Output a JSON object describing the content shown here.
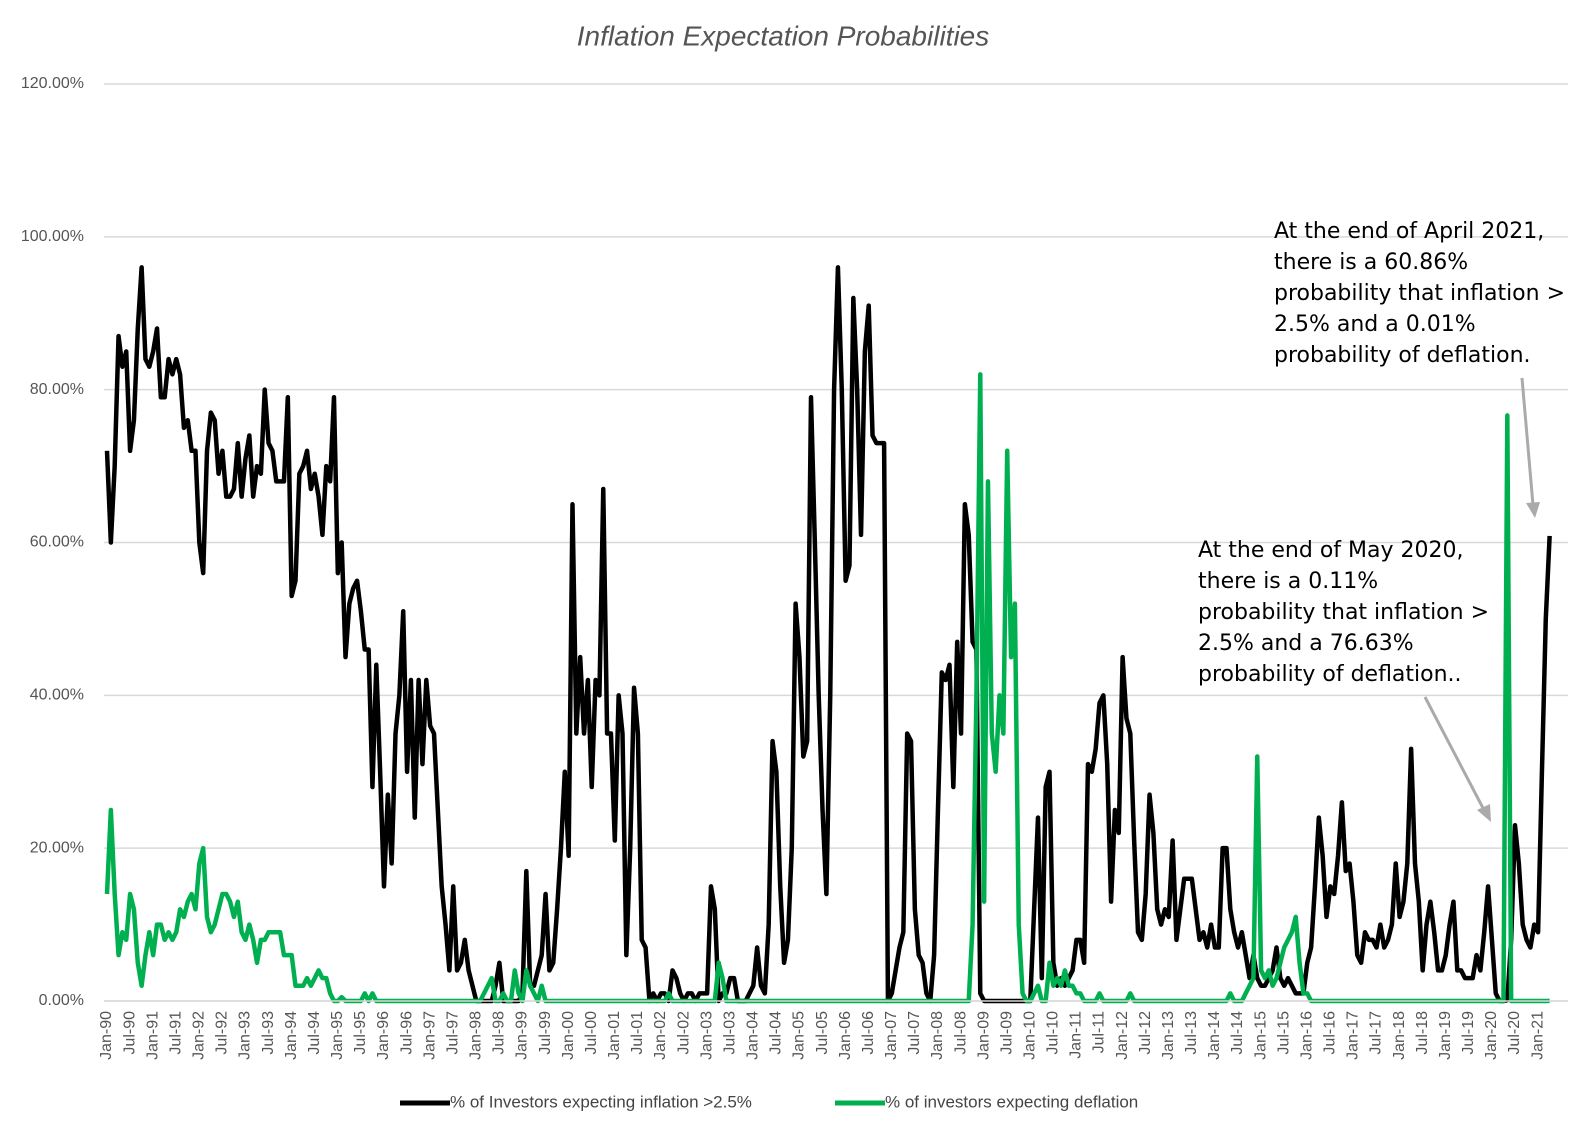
{
  "chart_data": {
    "type": "line",
    "title": "Inflation Expectation Probabilities",
    "categories": [
      "Jan-90",
      null,
      null,
      null,
      null,
      null,
      "Jul-90",
      null,
      null,
      null,
      null,
      null,
      "Jan-91",
      null,
      null,
      null,
      null,
      null,
      "Jul-91",
      null,
      null,
      null,
      null,
      null,
      "Jan-92",
      null,
      null,
      null,
      null,
      null,
      "Jul-92",
      null,
      null,
      null,
      null,
      null,
      "Jan-93",
      null,
      null,
      null,
      null,
      null,
      "Jul-93",
      null,
      null,
      null,
      null,
      null,
      "Jan-94",
      null,
      null,
      null,
      null,
      null,
      "Jul-94",
      null,
      null,
      null,
      null,
      null,
      "Jan-95",
      null,
      null,
      null,
      null,
      null,
      "Jul-95",
      null,
      null,
      null,
      null,
      null,
      "Jan-96",
      null,
      null,
      null,
      null,
      null,
      "Jul-96",
      null,
      null,
      null,
      null,
      null,
      "Jan-97",
      null,
      null,
      null,
      null,
      null,
      "Jul-97",
      null,
      null,
      null,
      null,
      null,
      "Jan-98",
      null,
      null,
      null,
      null,
      null,
      "Jul-98",
      null,
      null,
      null,
      null,
      null,
      "Jan-99",
      null,
      null,
      null,
      null,
      null,
      "Jul-99",
      null,
      null,
      null,
      null,
      null,
      "Jan-00",
      null,
      null,
      null,
      null,
      null,
      "Jul-00",
      null,
      null,
      null,
      null,
      null,
      "Jan-01",
      null,
      null,
      null,
      null,
      null,
      "Jul-01",
      null,
      null,
      null,
      null,
      null,
      "Jan-02",
      null,
      null,
      null,
      null,
      null,
      "Jul-02",
      null,
      null,
      null,
      null,
      null,
      "Jan-03",
      null,
      null,
      null,
      null,
      null,
      "Jul-03",
      null,
      null,
      null,
      null,
      null,
      "Jan-04",
      null,
      null,
      null,
      null,
      null,
      "Jul-04",
      null,
      null,
      null,
      null,
      null,
      "Jan-05",
      null,
      null,
      null,
      null,
      null,
      "Jul-05",
      null,
      null,
      null,
      null,
      null,
      "Jan-06",
      null,
      null,
      null,
      null,
      null,
      "Jul-06",
      null,
      null,
      null,
      null,
      null,
      "Jan-07",
      null,
      null,
      null,
      null,
      null,
      "Jul-07",
      null,
      null,
      null,
      null,
      null,
      "Jan-08",
      null,
      null,
      null,
      null,
      null,
      "Jul-08",
      null,
      null,
      null,
      null,
      null,
      "Jan-09",
      null,
      null,
      null,
      null,
      null,
      "Jul-09",
      null,
      null,
      null,
      null,
      null,
      "Jan-10",
      null,
      null,
      null,
      null,
      null,
      "Jul-10",
      null,
      null,
      null,
      null,
      null,
      "Jan-11",
      null,
      null,
      null,
      null,
      null,
      "Jul-11",
      null,
      null,
      null,
      null,
      null,
      "Jan-12",
      null,
      null,
      null,
      null,
      null,
      "Jul-12",
      null,
      null,
      null,
      null,
      null,
      "Jan-13",
      null,
      null,
      null,
      null,
      null,
      "Jul-13",
      null,
      null,
      null,
      null,
      null,
      "Jan-14",
      null,
      null,
      null,
      null,
      null,
      "Jul-14",
      null,
      null,
      null,
      null,
      null,
      "Jan-15",
      null,
      null,
      null,
      null,
      null,
      "Jul-15",
      null,
      null,
      null,
      null,
      null,
      "Jan-16",
      null,
      null,
      null,
      null,
      null,
      "Jul-16",
      null,
      null,
      null,
      null,
      null,
      "Jan-17",
      null,
      null,
      null,
      null,
      null,
      "Jul-17",
      null,
      null,
      null,
      null,
      null,
      "Jan-18",
      null,
      null,
      null,
      null,
      null,
      "Jul-18",
      null,
      null,
      null,
      null,
      null,
      "Jan-19",
      null,
      null,
      null,
      null,
      null,
      "Jul-19",
      null,
      null,
      null,
      null,
      null,
      "Jan-20",
      null,
      null,
      null,
      null,
      null,
      "Jul-20",
      null,
      null,
      null,
      null,
      null,
      "Jan-21",
      null,
      null,
      null
    ],
    "series": [
      {
        "name": "% of Investors expecting inflation >2.5%",
        "color": "#000000",
        "values": [
          72,
          60,
          70,
          87,
          83,
          85,
          72,
          76,
          88,
          96,
          84,
          83,
          85,
          88,
          79,
          79,
          84,
          82,
          84,
          82,
          75,
          76,
          72,
          72,
          60,
          56,
          72,
          77,
          76,
          69,
          72,
          66,
          66,
          67,
          73,
          66,
          71,
          74,
          66,
          70,
          69,
          80,
          73,
          72,
          68,
          68,
          68,
          79,
          53,
          55,
          69,
          70,
          72,
          67,
          69,
          66,
          61,
          70,
          68,
          79,
          56,
          60,
          45,
          52,
          54,
          55,
          51,
          46,
          46,
          28,
          44,
          30,
          15,
          27,
          18,
          35,
          40,
          51,
          30,
          42,
          24,
          42,
          31,
          42,
          36,
          35,
          25,
          15,
          10,
          4,
          15,
          4,
          5,
          8,
          4,
          2,
          0,
          0,
          0,
          0,
          0,
          2,
          5,
          0,
          0,
          0,
          0,
          0,
          1,
          17,
          2,
          2,
          4,
          6,
          14,
          4,
          5,
          12,
          20,
          30,
          19,
          65,
          35,
          45,
          35,
          42,
          28,
          42,
          40,
          67,
          35,
          35,
          21,
          40,
          35,
          6,
          20,
          41,
          35,
          8,
          7,
          0,
          1,
          0,
          1,
          1,
          0,
          4,
          3,
          1,
          0,
          1,
          1,
          0,
          1,
          1,
          1,
          15,
          12,
          0,
          1,
          1,
          3,
          3,
          0,
          0,
          0,
          1,
          2,
          7,
          2,
          1,
          10,
          34,
          30,
          15,
          5,
          8,
          20,
          52,
          45,
          32,
          34,
          79,
          60,
          40,
          25,
          14,
          40,
          80,
          96,
          80,
          55,
          57,
          92,
          80,
          61,
          85,
          91,
          74,
          73,
          73,
          73,
          0,
          1,
          4,
          7,
          9,
          35,
          34,
          12,
          6,
          5,
          1,
          0,
          6,
          25,
          43,
          42,
          44,
          28,
          47,
          35,
          65,
          61,
          47,
          46,
          1,
          0,
          0,
          0,
          0,
          0,
          0,
          0,
          0,
          0,
          0,
          0,
          0,
          0,
          12,
          24,
          3,
          28,
          30,
          5,
          2,
          3,
          2,
          3,
          4,
          8,
          8,
          5,
          31,
          30,
          33,
          39,
          40,
          31,
          13,
          25,
          22,
          45,
          37,
          35,
          21,
          9,
          8,
          14,
          27,
          22,
          12,
          10,
          12,
          11,
          21,
          8,
          12,
          16,
          16,
          16,
          12,
          8,
          9,
          7,
          10,
          7,
          7,
          20,
          20,
          12,
          9,
          7,
          9,
          6,
          3,
          6,
          3,
          2,
          2,
          3,
          4,
          7,
          3,
          2,
          3,
          2,
          1,
          1,
          1,
          5,
          7,
          15,
          24,
          19,
          11,
          15,
          14,
          19,
          26,
          17,
          18,
          13,
          6,
          5,
          9,
          8,
          8,
          7,
          10,
          7,
          8,
          10,
          18,
          11,
          13,
          18,
          33,
          18,
          13,
          4,
          10,
          13,
          9,
          4,
          4,
          6,
          10,
          13,
          4,
          4,
          3,
          3,
          3,
          6,
          4,
          9,
          15,
          8,
          1,
          0,
          0,
          0.11,
          8,
          23,
          18,
          10,
          8,
          7,
          10,
          9,
          30,
          50,
          60.86
        ]
      },
      {
        "name": "% of investors expecting deflation",
        "color": "#00b050",
        "values": [
          14,
          25,
          14,
          6,
          9,
          8,
          14,
          12,
          5,
          2,
          6,
          9,
          6,
          10,
          10,
          8,
          9,
          8,
          9,
          12,
          11,
          13,
          14,
          12,
          18,
          20,
          11,
          9,
          10,
          12,
          14,
          14,
          13,
          11,
          13,
          9,
          8,
          10,
          8,
          5,
          8,
          8,
          9,
          9,
          9,
          9,
          6,
          6,
          6,
          2,
          2,
          2,
          3,
          2,
          3,
          4,
          3,
          3,
          1,
          0,
          0,
          0.5,
          0,
          0,
          0,
          0,
          0,
          1,
          0,
          1,
          0,
          0,
          0,
          0,
          0,
          0,
          0,
          0,
          0,
          0,
          0,
          0,
          0,
          0,
          0,
          0,
          0,
          0,
          0,
          0,
          0,
          0,
          0,
          0,
          0,
          0,
          0,
          0,
          1,
          2,
          3,
          0,
          0,
          1,
          0,
          0,
          4,
          1,
          0,
          4,
          2,
          1,
          0,
          2,
          0,
          0,
          0,
          0,
          0,
          0,
          0,
          0,
          0,
          0,
          0,
          0,
          0,
          0,
          0,
          0,
          0,
          0,
          0,
          0,
          0,
          0,
          0,
          0,
          0,
          0,
          0,
          0,
          0,
          0,
          0,
          0,
          1,
          0,
          0,
          0,
          0,
          0,
          0,
          0,
          0,
          0,
          0,
          0,
          0,
          5,
          3,
          0,
          0,
          0,
          0,
          0,
          0,
          0,
          0,
          0,
          0,
          0,
          0,
          0,
          0,
          0,
          0,
          0,
          0,
          0,
          0,
          0,
          0,
          0,
          0,
          0,
          0,
          0,
          0,
          0,
          0,
          0,
          0,
          0,
          0,
          0,
          0,
          0,
          0,
          0,
          0,
          0,
          0,
          0,
          0,
          0,
          0,
          0,
          0,
          0,
          0,
          0,
          0,
          0,
          0,
          0,
          0,
          0,
          0,
          0,
          0,
          0,
          0,
          0,
          0,
          10,
          40,
          82,
          13,
          68,
          35,
          30,
          40,
          35,
          72,
          45,
          52,
          10,
          1,
          0,
          0,
          1,
          2,
          0,
          0,
          5,
          2,
          3,
          2,
          4,
          2,
          2,
          1,
          1,
          0,
          0,
          0,
          0,
          1,
          0,
          0,
          0,
          0,
          0,
          0,
          0,
          1,
          0,
          0,
          0,
          0,
          0,
          0,
          0,
          0,
          0,
          0,
          0,
          0,
          0,
          0,
          0,
          0,
          0,
          0,
          0,
          0,
          0,
          0,
          0,
          0,
          0,
          1,
          0,
          0,
          0,
          1,
          2,
          3,
          32,
          4,
          3,
          4,
          2,
          3,
          5,
          7,
          8,
          9,
          11,
          5,
          1,
          1,
          0,
          0,
          0,
          0,
          0,
          0,
          0,
          0,
          0,
          0,
          0,
          0,
          0,
          0,
          0,
          0,
          0,
          0,
          0,
          0,
          0,
          0,
          0,
          0,
          0,
          0,
          0,
          0,
          0,
          0,
          0,
          0,
          0,
          0,
          0,
          0,
          0,
          0,
          0,
          0,
          0,
          0,
          0,
          0,
          0,
          0,
          0,
          0,
          0,
          0,
          0,
          76.63,
          0,
          0,
          0,
          0,
          0,
          0,
          0,
          0,
          0,
          0,
          0.01
        ]
      }
    ],
    "ylim": [
      0,
      120
    ],
    "yticks": [
      {
        "value": 0,
        "label": "0.00%"
      },
      {
        "value": 20,
        "label": "20.00%"
      },
      {
        "value": 40,
        "label": "40.00%"
      },
      {
        "value": 60,
        "label": "60.00%"
      },
      {
        "value": 80,
        "label": "80.00%"
      },
      {
        "value": 100,
        "label": "100.00%"
      },
      {
        "value": 120,
        "label": "120.00%"
      }
    ],
    "grid": true,
    "legend": "bottom",
    "annotations": [
      {
        "lines": [
          "At the end of April 2021,",
          "there is a 60.86%",
          "probability that inflation >",
          "2.5% and a 0.01%",
          "probability of deflation."
        ]
      },
      {
        "lines": [
          "At the end of May 2020,",
          "there is a 0.11%",
          "probability that inflation >",
          "2.5% and a 76.63%",
          "probability of deflation.."
        ]
      }
    ]
  }
}
